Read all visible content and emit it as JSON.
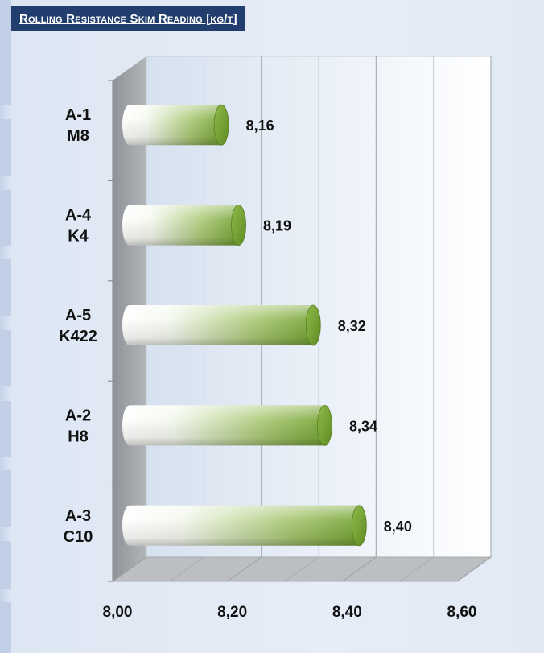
{
  "title": "Rolling Resistance Skim Reading [kg/t]",
  "colors": {
    "title_bg": "#213e6e",
    "title_text": "#ffffff",
    "bar_start": "#ffffff",
    "bar_end": "#6f9c2f",
    "wall": "#9fa3a7",
    "floor": "#b9bcbf",
    "plot_bg": "#e3ebf5"
  },
  "chart_data": {
    "type": "bar",
    "orientation": "horizontal",
    "categories": [
      {
        "line1": "A-1",
        "line2": "M8"
      },
      {
        "line1": "A-4",
        "line2": "K4"
      },
      {
        "line1": "A-5",
        "line2": "K422"
      },
      {
        "line1": "A-2",
        "line2": "H8"
      },
      {
        "line1": "A-3",
        "line2": "C10"
      }
    ],
    "series": [
      {
        "values": [
          8.16,
          8.19,
          8.32,
          8.34,
          8.4
        ],
        "value_labels": [
          "8,16",
          "8,19",
          "8,32",
          "8,34",
          "8,40"
        ]
      }
    ],
    "xlim": [
      8.0,
      8.6
    ],
    "x_ticks": [
      8.0,
      8.2,
      8.4,
      8.6
    ],
    "x_tick_labels": [
      "8,00",
      "8,20",
      "8,40",
      "8,60"
    ],
    "grid": true,
    "style": "3d-cylinder"
  }
}
